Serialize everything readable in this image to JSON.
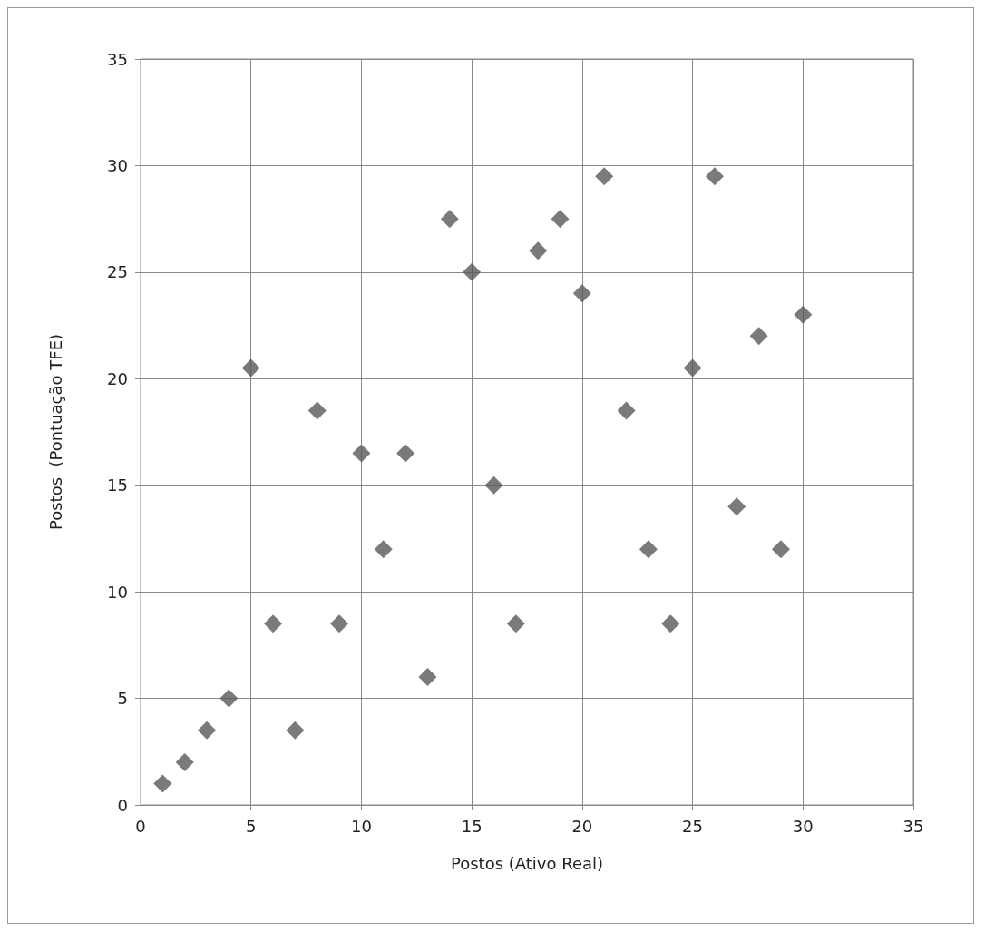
{
  "chart_data": {
    "type": "scatter",
    "xlabel": "Postos (Ativo Real)",
    "ylabel": "Postos  (Pontuação TFE)",
    "x": [
      1,
      2,
      3,
      4,
      5,
      6,
      7,
      8,
      9,
      10,
      11,
      12,
      13,
      14,
      15,
      16,
      17,
      18,
      19,
      20,
      21,
      22,
      23,
      24,
      25,
      26,
      27,
      28,
      29,
      30
    ],
    "values": [
      1,
      2,
      3.5,
      5,
      20.5,
      8.5,
      3.5,
      18.5,
      8.5,
      16.5,
      12,
      16.5,
      6,
      27.5,
      25,
      15,
      8.5,
      26,
      27.5,
      24,
      29.5,
      18.5,
      12,
      8.5,
      20.5,
      29.5,
      14,
      22,
      12,
      23
    ],
    "color": "#595959",
    "marker": "diamond",
    "xlim": [
      0,
      35
    ],
    "xticks": [
      0,
      5,
      10,
      15,
      20,
      25,
      30,
      35
    ],
    "ylim": [
      0,
      35
    ],
    "yticks": [
      0,
      5,
      10,
      15,
      20,
      25,
      30,
      35
    ],
    "grid": true
  }
}
